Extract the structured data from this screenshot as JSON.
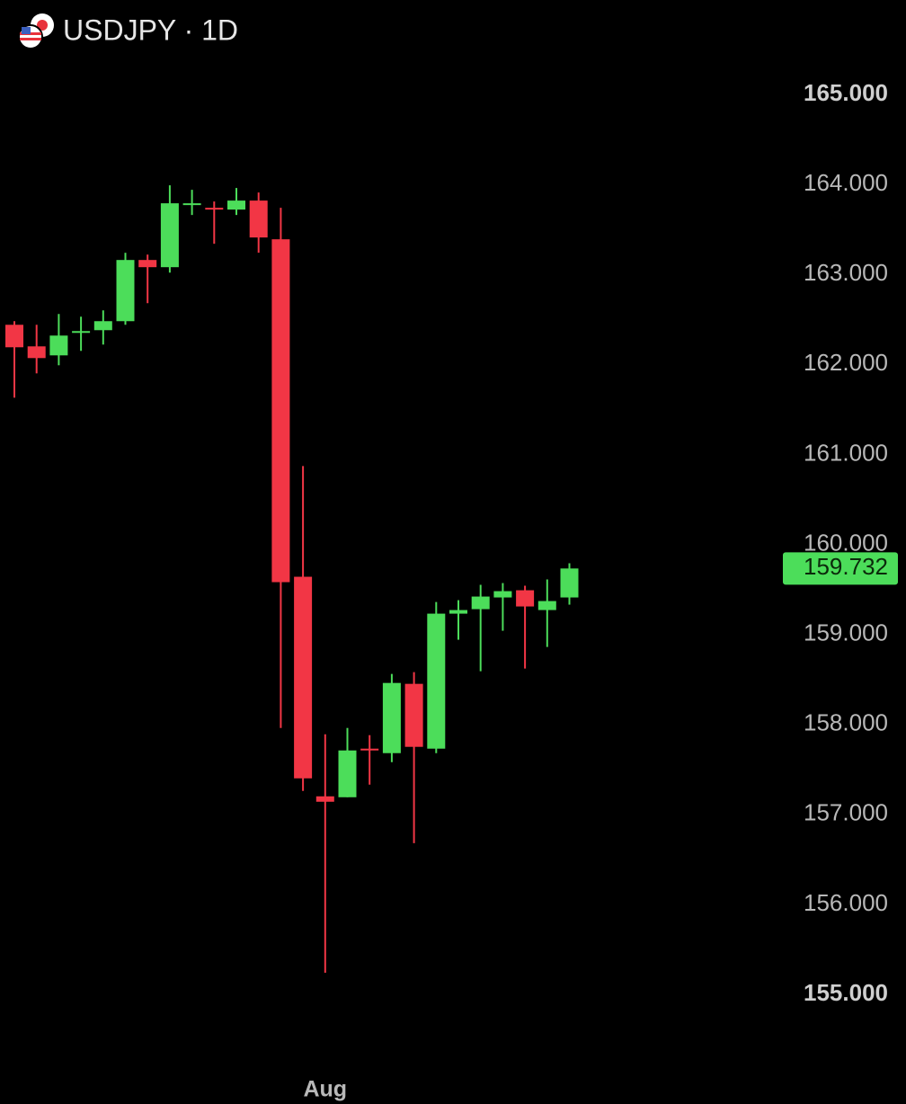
{
  "chart_data": {
    "type": "candlestick",
    "title": "USDJPY · 1D",
    "categories": [
      null,
      null,
      null,
      null,
      null,
      null,
      null,
      null,
      null,
      null,
      null,
      null,
      null,
      null,
      "Aug",
      null,
      null,
      null,
      null,
      null,
      null,
      null,
      null,
      null,
      null,
      null
    ],
    "open": [
      162.44,
      162.2,
      162.1,
      162.35,
      162.38,
      162.48,
      163.16,
      163.08,
      163.78,
      163.74,
      163.72,
      163.82,
      163.39,
      159.64,
      157.2,
      157.19,
      157.73,
      157.68,
      158.45,
      157.73,
      159.23,
      159.28,
      159.41,
      159.49,
      159.27,
      159.41
    ],
    "high": [
      162.48,
      162.44,
      162.56,
      162.53,
      162.6,
      163.24,
      163.22,
      163.99,
      163.94,
      163.81,
      163.96,
      163.91,
      163.74,
      160.87,
      157.89,
      157.96,
      157.88,
      158.56,
      158.58,
      159.36,
      159.38,
      159.55,
      159.57,
      159.54,
      159.61,
      159.79
    ],
    "low": [
      161.63,
      161.9,
      161.99,
      162.15,
      162.22,
      162.44,
      162.68,
      163.02,
      163.66,
      163.34,
      163.66,
      163.24,
      157.96,
      157.26,
      155.24,
      157.19,
      157.33,
      157.58,
      156.68,
      157.68,
      158.94,
      158.59,
      159.04,
      158.62,
      158.86,
      159.33
    ],
    "close": [
      162.19,
      162.07,
      162.32,
      162.37,
      162.48,
      163.16,
      163.08,
      163.79,
      163.79,
      163.72,
      163.82,
      163.41,
      159.58,
      157.4,
      157.14,
      157.71,
      157.72,
      158.46,
      157.75,
      159.23,
      159.27,
      159.42,
      159.48,
      159.31,
      159.37,
      159.732
    ],
    "up_color": "#4cdd5a",
    "down_color": "#f23645",
    "ylim": [
      155,
      165
    ],
    "yticks": [
      {
        "value": 165,
        "label": "165.000"
      },
      {
        "value": 164,
        "label": "164.000"
      },
      {
        "value": 163,
        "label": "163.000"
      },
      {
        "value": 162,
        "label": "162.000"
      },
      {
        "value": 161,
        "label": "161.000"
      },
      {
        "value": 160,
        "label": "160.000"
      },
      {
        "value": 159,
        "label": "159.000"
      },
      {
        "value": 158,
        "label": "158.000"
      },
      {
        "value": 157,
        "label": "157.000"
      },
      {
        "value": 156,
        "label": "156.000"
      },
      {
        "value": 155,
        "label": "155.000"
      }
    ]
  }
}
